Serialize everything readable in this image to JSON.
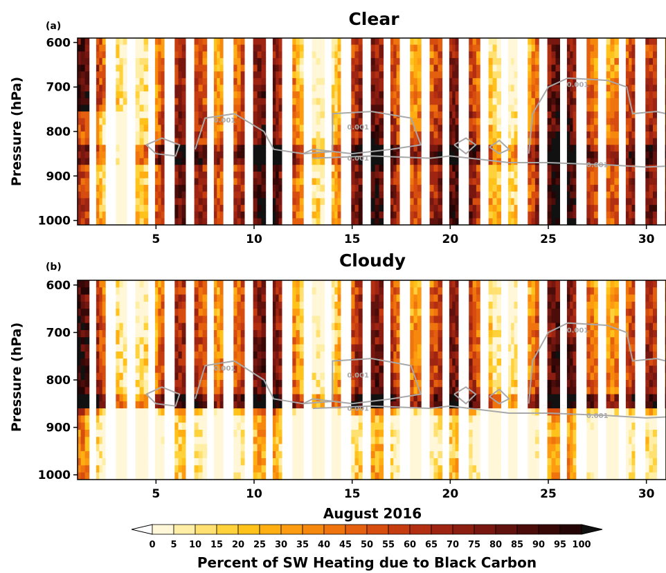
{
  "chart_data": [
    {
      "type": "heatmap",
      "panel_tag": "(a)",
      "title": "Clear",
      "ylabel": "Pressure (hPa)",
      "xlabel": "",
      "xlim": [
        1,
        31
      ],
      "ylim": [
        1010,
        590
      ],
      "x_ticks": [
        5,
        10,
        15,
        20,
        25,
        30
      ],
      "y_ticks": [
        600,
        700,
        800,
        900,
        1000
      ],
      "contour_labels": [
        "0.001",
        "0.001",
        "0.001",
        "0.001",
        "0.001"
      ]
    },
    {
      "type": "heatmap",
      "panel_tag": "(b)",
      "title": "Cloudy",
      "ylabel": "Pressure (hPa)",
      "xlabel": "August 2016",
      "xlim": [
        1,
        31
      ],
      "ylim": [
        1010,
        590
      ],
      "x_ticks": [
        5,
        10,
        15,
        20,
        25,
        30
      ],
      "y_ticks": [
        600,
        700,
        800,
        900,
        1000
      ],
      "contour_labels": [
        "0.001",
        "0.001",
        "0.001",
        "0.001",
        "0.001"
      ]
    }
  ],
  "colorbar": {
    "label": "Percent of SW Heating due to Black Carbon",
    "ticks": [
      "0",
      "5",
      "10",
      "15",
      "20",
      "25",
      "30",
      "35",
      "40",
      "45",
      "50",
      "55",
      "60",
      "65",
      "70",
      "75",
      "80",
      "85",
      "90",
      "95",
      "100"
    ],
    "colors": [
      "#fff7d8",
      "#ffeea6",
      "#ffe070",
      "#ffd23c",
      "#ffc21a",
      "#ffaf12",
      "#fd9c10",
      "#f7880e",
      "#ef740e",
      "#e4600e",
      "#d64d0f",
      "#c53c10",
      "#b22f11",
      "#9f2512",
      "#8c1d11",
      "#78170f",
      "#62120d",
      "#4c0c09",
      "#380806",
      "#240404"
    ],
    "extend_low_color": "#ffffff",
    "extend_high_color": "#111111"
  }
}
